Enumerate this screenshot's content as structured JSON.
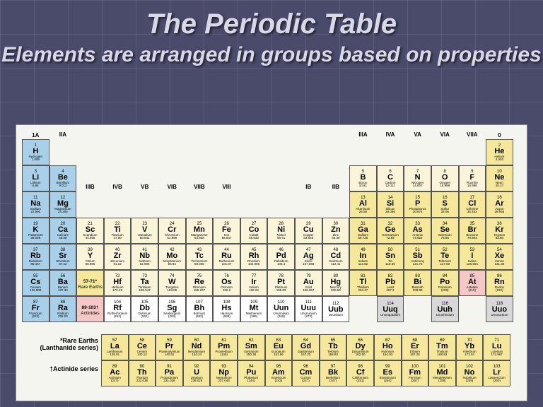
{
  "title": "The Periodic Table",
  "subtitle": "Elements are arranged in groups based on properties",
  "colors": {
    "blue": "#a8d0e8",
    "yellow": "#f5e89a",
    "cream": "#faf5d8",
    "pink": "#f5c8c8",
    "gray": "#d8d8d8",
    "white": "#ffffff"
  },
  "group_labels": [
    "1A",
    "IIA",
    "IIIB",
    "IVB",
    "VB",
    "VIB",
    "VIIB",
    "VIII",
    "",
    "",
    "IB",
    "IIB",
    "IIIA",
    "IVA",
    "VA",
    "VIA",
    "VIIA",
    "0"
  ],
  "group_label_row": [
    1,
    2,
    4,
    4,
    4,
    4,
    4,
    4,
    4,
    4,
    4,
    4,
    2,
    2,
    2,
    2,
    2,
    1
  ],
  "elements": [
    {
      "n": 1,
      "s": "H",
      "nm": "Hydrogen",
      "w": "1.008",
      "r": 2,
      "c": 1,
      "k": "blue"
    },
    {
      "n": 2,
      "s": "He",
      "nm": "Helium",
      "w": "4.003",
      "r": 2,
      "c": 18,
      "k": "yellow"
    },
    {
      "n": 3,
      "s": "Li",
      "nm": "Lithium",
      "w": "6.94",
      "r": 3,
      "c": 1,
      "k": "blue"
    },
    {
      "n": 4,
      "s": "Be",
      "nm": "Beryllium",
      "w": "9.012",
      "r": 3,
      "c": 2,
      "k": "blue"
    },
    {
      "n": 5,
      "s": "B",
      "nm": "Boron",
      "w": "10.81",
      "r": 3,
      "c": 13,
      "k": "cream"
    },
    {
      "n": 6,
      "s": "C",
      "nm": "Carbon",
      "w": "12.011",
      "r": 3,
      "c": 14,
      "k": "cream"
    },
    {
      "n": 7,
      "s": "N",
      "nm": "Nitrogen",
      "w": "14.007",
      "r": 3,
      "c": 15,
      "k": "cream"
    },
    {
      "n": 8,
      "s": "O",
      "nm": "Oxygen",
      "w": "15.999",
      "r": 3,
      "c": 16,
      "k": "cream"
    },
    {
      "n": 9,
      "s": "F",
      "nm": "Fluorine",
      "w": "18.998",
      "r": 3,
      "c": 17,
      "k": "cream"
    },
    {
      "n": 10,
      "s": "Ne",
      "nm": "Neon",
      "w": "20.17",
      "r": 3,
      "c": 18,
      "k": "yellow"
    },
    {
      "n": 11,
      "s": "Na",
      "nm": "Sodium",
      "w": "22.990",
      "r": 4,
      "c": 1,
      "k": "blue"
    },
    {
      "n": 12,
      "s": "Mg",
      "nm": "Magnesium",
      "w": "24.305",
      "r": 4,
      "c": 2,
      "k": "blue"
    },
    {
      "n": 13,
      "s": "Al",
      "nm": "Aluminum",
      "w": "26.98",
      "r": 4,
      "c": 13,
      "k": "yellow"
    },
    {
      "n": 14,
      "s": "Si",
      "nm": "Silicon",
      "w": "28.086",
      "r": 4,
      "c": 14,
      "k": "yellow"
    },
    {
      "n": 15,
      "s": "P",
      "nm": "Phosphorus",
      "w": "30.974",
      "r": 4,
      "c": 15,
      "k": "yellow"
    },
    {
      "n": 16,
      "s": "S",
      "nm": "Sulfur",
      "w": "32.06",
      "r": 4,
      "c": 16,
      "k": "yellow"
    },
    {
      "n": 17,
      "s": "Cl",
      "nm": "Chlorine",
      "w": "35.453",
      "r": 4,
      "c": 17,
      "k": "yellow"
    },
    {
      "n": 18,
      "s": "Ar",
      "nm": "Argon",
      "w": "39.948",
      "r": 4,
      "c": 18,
      "k": "yellow"
    },
    {
      "n": 19,
      "s": "K",
      "nm": "Potassium",
      "w": "39.098",
      "r": 5,
      "c": 1,
      "k": "blue"
    },
    {
      "n": 20,
      "s": "Ca",
      "nm": "Calcium",
      "w": "40.08",
      "r": 5,
      "c": 2,
      "k": "blue"
    },
    {
      "n": 21,
      "s": "Sc",
      "nm": "Scandium",
      "w": "44.956",
      "r": 5,
      "c": 3,
      "k": "cream"
    },
    {
      "n": 22,
      "s": "Ti",
      "nm": "Titanium",
      "w": "47.90",
      "r": 5,
      "c": 4,
      "k": "cream"
    },
    {
      "n": 23,
      "s": "V",
      "nm": "Vanadium",
      "w": "50.942",
      "r": 5,
      "c": 5,
      "k": "cream"
    },
    {
      "n": 24,
      "s": "Cr",
      "nm": "Chromium",
      "w": "51.996",
      "r": 5,
      "c": 6,
      "k": "cream"
    },
    {
      "n": 25,
      "s": "Mn",
      "nm": "Manganese",
      "w": "54.938",
      "r": 5,
      "c": 7,
      "k": "cream"
    },
    {
      "n": 26,
      "s": "Fe",
      "nm": "Iron",
      "w": "55.847",
      "r": 5,
      "c": 8,
      "k": "cream"
    },
    {
      "n": 27,
      "s": "Co",
      "nm": "Cobalt",
      "w": "58.933",
      "r": 5,
      "c": 9,
      "k": "cream"
    },
    {
      "n": 28,
      "s": "Ni",
      "nm": "Nickel",
      "w": "58.71",
      "r": 5,
      "c": 10,
      "k": "cream"
    },
    {
      "n": 29,
      "s": "Cu",
      "nm": "Copper",
      "w": "63.546",
      "r": 5,
      "c": 11,
      "k": "cream"
    },
    {
      "n": 30,
      "s": "Zn",
      "nm": "Zinc",
      "w": "65.38",
      "r": 5,
      "c": 12,
      "k": "cream"
    },
    {
      "n": 31,
      "s": "Ga",
      "nm": "Gallium",
      "w": "69.735",
      "r": 5,
      "c": 13,
      "k": "yellow"
    },
    {
      "n": 32,
      "s": "Ge",
      "nm": "Germanium",
      "w": "72.59",
      "r": 5,
      "c": 14,
      "k": "yellow"
    },
    {
      "n": 33,
      "s": "As",
      "nm": "Arsenic",
      "w": "74.922",
      "r": 5,
      "c": 15,
      "k": "yellow"
    },
    {
      "n": 34,
      "s": "Se",
      "nm": "Selenium",
      "w": "78.96",
      "r": 5,
      "c": 16,
      "k": "yellow"
    },
    {
      "n": 35,
      "s": "Br",
      "nm": "Bromine",
      "w": "79.904",
      "r": 5,
      "c": 17,
      "k": "yellow"
    },
    {
      "n": 36,
      "s": "Kr",
      "nm": "Krypton",
      "w": "83.80",
      "r": 5,
      "c": 18,
      "k": "yellow"
    },
    {
      "n": 37,
      "s": "Rb",
      "nm": "Rubidium",
      "w": "85.467",
      "r": 6,
      "c": 1,
      "k": "blue"
    },
    {
      "n": 38,
      "s": "Sr",
      "nm": "Strontium",
      "w": "87.62",
      "r": 6,
      "c": 2,
      "k": "blue"
    },
    {
      "n": 39,
      "s": "Y",
      "nm": "Yttrium",
      "w": "88.906",
      "r": 6,
      "c": 3,
      "k": "cream"
    },
    {
      "n": 40,
      "s": "Zr",
      "nm": "Zirconium",
      "w": "91.22",
      "r": 6,
      "c": 4,
      "k": "cream"
    },
    {
      "n": 41,
      "s": "Nb",
      "nm": "Niobium",
      "w": "92.906",
      "r": 6,
      "c": 5,
      "k": "cream"
    },
    {
      "n": 42,
      "s": "Mo",
      "nm": "Molybdenum",
      "w": "95.94",
      "r": 6,
      "c": 6,
      "k": "cream"
    },
    {
      "n": 43,
      "s": "Tc",
      "nm": "Technetium",
      "w": "98.906",
      "r": 6,
      "c": 7,
      "k": "cream"
    },
    {
      "n": 44,
      "s": "Ru",
      "nm": "Ruthenium",
      "w": "101.07",
      "r": 6,
      "c": 8,
      "k": "cream"
    },
    {
      "n": 45,
      "s": "Rh",
      "nm": "Rhodium",
      "w": "102.906",
      "r": 6,
      "c": 9,
      "k": "cream"
    },
    {
      "n": 46,
      "s": "Pd",
      "nm": "Palladium",
      "w": "106.4",
      "r": 6,
      "c": 10,
      "k": "cream"
    },
    {
      "n": 47,
      "s": "Ag",
      "nm": "Silver",
      "w": "107.868",
      "r": 6,
      "c": 11,
      "k": "cream"
    },
    {
      "n": 48,
      "s": "Cd",
      "nm": "Cadmium",
      "w": "112.41",
      "r": 6,
      "c": 12,
      "k": "cream"
    },
    {
      "n": 49,
      "s": "In",
      "nm": "Indium",
      "w": "114.82",
      "r": 6,
      "c": 13,
      "k": "yellow"
    },
    {
      "n": 50,
      "s": "Sn",
      "nm": "Tin",
      "w": "118.69",
      "r": 6,
      "c": 14,
      "k": "yellow"
    },
    {
      "n": 51,
      "s": "Sb",
      "nm": "Antimony",
      "w": "121.75",
      "r": 6,
      "c": 15,
      "k": "yellow"
    },
    {
      "n": 52,
      "s": "Te",
      "nm": "Tellurium",
      "w": "127.60",
      "r": 6,
      "c": 16,
      "k": "yellow"
    },
    {
      "n": 53,
      "s": "I",
      "nm": "Iodine",
      "w": "126.904",
      "r": 6,
      "c": 17,
      "k": "yellow"
    },
    {
      "n": 54,
      "s": "Xe",
      "nm": "Xenon",
      "w": "131.30",
      "r": 6,
      "c": 18,
      "k": "yellow"
    },
    {
      "n": 55,
      "s": "Cs",
      "nm": "Cesium",
      "w": "132.906",
      "r": 7,
      "c": 1,
      "k": "blue"
    },
    {
      "n": 56,
      "s": "Ba",
      "nm": "Barium",
      "w": "137.33",
      "r": 7,
      "c": 2,
      "k": "blue"
    },
    {
      "n": "57-71*",
      "s": "",
      "nm": "Rare Earths",
      "w": "",
      "r": 7,
      "c": 3,
      "k": "yellow",
      "lbl": true
    },
    {
      "n": 72,
      "s": "Hf",
      "nm": "Hafnium",
      "w": "178.49",
      "r": 7,
      "c": 4,
      "k": "cream"
    },
    {
      "n": 73,
      "s": "Ta",
      "nm": "Tantalum",
      "w": "180.947",
      "r": 7,
      "c": 5,
      "k": "cream"
    },
    {
      "n": 74,
      "s": "W",
      "nm": "Tungsten",
      "w": "183.85",
      "r": 7,
      "c": 6,
      "k": "cream"
    },
    {
      "n": 75,
      "s": "Re",
      "nm": "Rhenium",
      "w": "186.207",
      "r": 7,
      "c": 7,
      "k": "cream"
    },
    {
      "n": 76,
      "s": "Os",
      "nm": "Osmium",
      "w": "190.2",
      "r": 7,
      "c": 8,
      "k": "cream"
    },
    {
      "n": 77,
      "s": "Ir",
      "nm": "Iridium",
      "w": "192.22",
      "r": 7,
      "c": 9,
      "k": "cream"
    },
    {
      "n": 78,
      "s": "Pt",
      "nm": "Platinum",
      "w": "195.09",
      "r": 7,
      "c": 10,
      "k": "cream"
    },
    {
      "n": 79,
      "s": "Au",
      "nm": "Gold",
      "w": "196.967",
      "r": 7,
      "c": 11,
      "k": "cream"
    },
    {
      "n": 80,
      "s": "Hg",
      "nm": "Mercury",
      "w": "200.59",
      "r": 7,
      "c": 12,
      "k": "cream"
    },
    {
      "n": 81,
      "s": "Tl",
      "nm": "Thallium",
      "w": "204.37",
      "r": 7,
      "c": 13,
      "k": "yellow"
    },
    {
      "n": 82,
      "s": "Pb",
      "nm": "Lead",
      "w": "207.2",
      "r": 7,
      "c": 14,
      "k": "yellow"
    },
    {
      "n": 83,
      "s": "Bi",
      "nm": "Bismuth",
      "w": "208.98",
      "r": 7,
      "c": 15,
      "k": "yellow"
    },
    {
      "n": 84,
      "s": "Po",
      "nm": "Polonium",
      "w": "(209)",
      "r": 7,
      "c": 16,
      "k": "yellow"
    },
    {
      "n": 85,
      "s": "At",
      "nm": "Astatine",
      "w": "(210)",
      "r": 7,
      "c": 17,
      "k": "pink"
    },
    {
      "n": 86,
      "s": "Rn",
      "nm": "Radon",
      "w": "(222)",
      "r": 7,
      "c": 18,
      "k": "yellow"
    },
    {
      "n": 87,
      "s": "Fr",
      "nm": "Francium",
      "w": "(223)",
      "r": 8,
      "c": 1,
      "k": "blue"
    },
    {
      "n": 88,
      "s": "Ra",
      "nm": "Radium",
      "w": "226.03",
      "r": 8,
      "c": 2,
      "k": "blue"
    },
    {
      "n": "89-103†",
      "s": "",
      "nm": "Actinides",
      "w": "",
      "r": 8,
      "c": 3,
      "k": "pink",
      "lbl": true
    },
    {
      "n": 104,
      "s": "Rf",
      "nm": "Rutherfordium",
      "w": "(261)",
      "r": 8,
      "c": 4,
      "k": "white"
    },
    {
      "n": 105,
      "s": "Db",
      "nm": "Dubnium",
      "w": "(262)",
      "r": 8,
      "c": 5,
      "k": "white"
    },
    {
      "n": 106,
      "s": "Sg",
      "nm": "Seaborgium",
      "w": "(263)",
      "r": 8,
      "c": 6,
      "k": "white"
    },
    {
      "n": 107,
      "s": "Bh",
      "nm": "Bohrium",
      "w": "(262)",
      "r": 8,
      "c": 7,
      "k": "white"
    },
    {
      "n": 108,
      "s": "Hs",
      "nm": "Hassium",
      "w": "(265)",
      "r": 8,
      "c": 8,
      "k": "white"
    },
    {
      "n": 109,
      "s": "Mt",
      "nm": "Meitnerium",
      "w": "(266)",
      "r": 8,
      "c": 9,
      "k": "white"
    },
    {
      "n": 110,
      "s": "Uun",
      "nm": "Ununnilium",
      "w": "(269)",
      "r": 8,
      "c": 10,
      "k": "white"
    },
    {
      "n": 111,
      "s": "Uuu",
      "nm": "Unununium",
      "w": "(272)",
      "r": 8,
      "c": 11,
      "k": "white"
    },
    {
      "n": 112,
      "s": "Uub",
      "nm": "Ununbium",
      "w": "",
      "r": 8,
      "c": 12,
      "k": "white"
    },
    {
      "n": 114,
      "s": "Uuq",
      "nm": "Ununquadium",
      "w": "",
      "r": 8,
      "c": 14,
      "k": "gray"
    },
    {
      "n": 116,
      "s": "Uuh",
      "nm": "Ununhexium",
      "w": "",
      "r": 8,
      "c": 16,
      "k": "gray"
    },
    {
      "n": 118,
      "s": "Uuo",
      "nm": "Ununoctium",
      "w": "",
      "r": 8,
      "c": 18,
      "k": "gray"
    }
  ],
  "f_labels": [
    "*Rare Earths (Lanthanide series)",
    "†Actinide series"
  ],
  "f_block": [
    [
      {
        "n": 57,
        "s": "La",
        "nm": "Lanthanum",
        "w": "138.91"
      },
      {
        "n": 58,
        "s": "Ce",
        "nm": "Cerium",
        "w": "140.12"
      },
      {
        "n": 59,
        "s": "Pr",
        "nm": "Praseodymium",
        "w": "140.91"
      },
      {
        "n": 60,
        "s": "Nd",
        "nm": "Neodymium",
        "w": "144.24"
      },
      {
        "n": 61,
        "s": "Pm",
        "nm": "Promethium",
        "w": "(145)"
      },
      {
        "n": 62,
        "s": "Sm",
        "nm": "Samarium",
        "w": "150.36"
      },
      {
        "n": 63,
        "s": "Eu",
        "nm": "Europium",
        "w": "151.96"
      },
      {
        "n": 64,
        "s": "Gd",
        "nm": "Gadolinium",
        "w": "157.25"
      },
      {
        "n": 65,
        "s": "Tb",
        "nm": "Terbium",
        "w": "158.93"
      },
      {
        "n": 66,
        "s": "Dy",
        "nm": "Dysprosium",
        "w": "162.50"
      },
      {
        "n": 67,
        "s": "Ho",
        "nm": "Holmium",
        "w": "164.93"
      },
      {
        "n": 68,
        "s": "Er",
        "nm": "Erbium",
        "w": "167.26"
      },
      {
        "n": 69,
        "s": "Tm",
        "nm": "Thulium",
        "w": "168.93"
      },
      {
        "n": 70,
        "s": "Yb",
        "nm": "Ytterbium",
        "w": "173.04"
      },
      {
        "n": 71,
        "s": "Lu",
        "nm": "Lutetium",
        "w": "174.967"
      }
    ],
    [
      {
        "n": 89,
        "s": "Ac",
        "nm": "Actinium",
        "w": "(227)"
      },
      {
        "n": 90,
        "s": "Th",
        "nm": "Thorium",
        "w": "232.038"
      },
      {
        "n": 91,
        "s": "Pa",
        "nm": "Protactinium",
        "w": "231.036"
      },
      {
        "n": 92,
        "s": "U",
        "nm": "Uranium",
        "w": "238.029"
      },
      {
        "n": 93,
        "s": "Np",
        "nm": "Neptunium",
        "w": "237.048"
      },
      {
        "n": 94,
        "s": "Pu",
        "nm": "Plutonium",
        "w": "(244)"
      },
      {
        "n": 95,
        "s": "Am",
        "nm": "Americium",
        "w": "(243)"
      },
      {
        "n": 96,
        "s": "Cm",
        "nm": "Curium",
        "w": "(247)"
      },
      {
        "n": 97,
        "s": "Bk",
        "nm": "Berkelium",
        "w": "(247)"
      },
      {
        "n": 98,
        "s": "Cf",
        "nm": "Californium",
        "w": "(251)"
      },
      {
        "n": 99,
        "s": "Es",
        "nm": "Einsteinium",
        "w": "(254)"
      },
      {
        "n": 100,
        "s": "Fm",
        "nm": "Fermium",
        "w": "(257)"
      },
      {
        "n": 101,
        "s": "Md",
        "nm": "Mendelevium",
        "w": "(258)"
      },
      {
        "n": 102,
        "s": "No",
        "nm": "Nobelium",
        "w": "(259)"
      },
      {
        "n": 103,
        "s": "Lr",
        "nm": "Lawrencium",
        "w": "(260)"
      }
    ]
  ],
  "f_color": "yellow"
}
